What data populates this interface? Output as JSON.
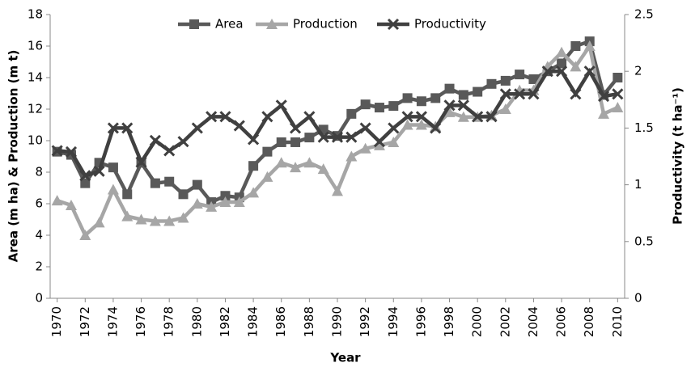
{
  "chart_data": {
    "type": "line",
    "x_label": "Year",
    "y_label": "Area (m ha) & Production (m t)",
    "y2_label": "Productivity (t ha⁻¹)",
    "x": [
      1970,
      1971,
      1972,
      1973,
      1974,
      1975,
      1976,
      1977,
      1978,
      1979,
      1980,
      1981,
      1982,
      1983,
      1984,
      1985,
      1986,
      1987,
      1988,
      1989,
      1990,
      1991,
      1992,
      1993,
      1994,
      1995,
      1996,
      1997,
      1998,
      1999,
      2000,
      2001,
      2002,
      2003,
      2004,
      2005,
      2006,
      2007,
      2008,
      2009,
      2010
    ],
    "xlim": [
      1969.5,
      2010.5
    ],
    "xticks": [
      1970,
      1972,
      1974,
      1976,
      1978,
      1980,
      1982,
      1984,
      1986,
      1988,
      1990,
      1992,
      1994,
      1996,
      1998,
      2000,
      2002,
      2004,
      2006,
      2008,
      2010
    ],
    "ylim": [
      0,
      18
    ],
    "yticks": [
      0,
      2,
      4,
      6,
      8,
      10,
      12,
      14,
      16,
      18
    ],
    "y2lim": [
      0,
      2.5
    ],
    "y2ticks": [
      0,
      0.5,
      1,
      1.5,
      2,
      2.5
    ],
    "legend": "top",
    "grid": false,
    "series": [
      {
        "name": "Area",
        "color": "#595959",
        "marker": "square",
        "values": [
          9.3,
          9.1,
          7.3,
          8.6,
          8.3,
          6.6,
          8.6,
          7.3,
          7.4,
          6.6,
          7.2,
          6.1,
          6.5,
          6.4,
          8.4,
          9.3,
          9.9,
          9.9,
          10.2,
          10.7,
          10.3,
          11.7,
          12.3,
          12.1,
          12.2,
          12.7,
          12.5,
          12.7,
          13.3,
          12.9,
          13.1,
          13.6,
          13.8,
          14.2,
          13.9,
          14.4,
          14.9,
          16.0,
          16.3,
          12.9,
          14.0
        ]
      },
      {
        "name": "Production",
        "color": "#a6a6a6",
        "marker": "triangle",
        "values": [
          6.2,
          5.9,
          4.0,
          4.8,
          6.9,
          5.2,
          5.0,
          4.9,
          4.9,
          5.1,
          6.0,
          5.8,
          6.1,
          6.1,
          6.7,
          7.7,
          8.6,
          8.3,
          8.6,
          8.2,
          6.8,
          9.0,
          9.5,
          9.7,
          9.9,
          11.0,
          11.0,
          10.9,
          11.8,
          11.5,
          11.5,
          11.6,
          12.0,
          13.2,
          13.2,
          14.7,
          15.6,
          14.7,
          16.0,
          11.7,
          12.1
        ]
      },
      {
        "name": "Productivity",
        "color": "#404040",
        "marker": "x",
        "axis": "y2",
        "values": [
          1.3,
          1.29,
          1.08,
          1.12,
          1.5,
          1.5,
          1.2,
          1.39,
          1.3,
          1.38,
          1.5,
          1.6,
          1.6,
          1.52,
          1.4,
          1.6,
          1.7,
          1.5,
          1.6,
          1.42,
          1.42,
          1.42,
          1.5,
          1.38,
          1.5,
          1.6,
          1.6,
          1.5,
          1.7,
          1.7,
          1.6,
          1.6,
          1.8,
          1.8,
          1.8,
          2.0,
          2.0,
          1.8,
          2.0,
          1.78,
          1.8
        ]
      }
    ]
  }
}
